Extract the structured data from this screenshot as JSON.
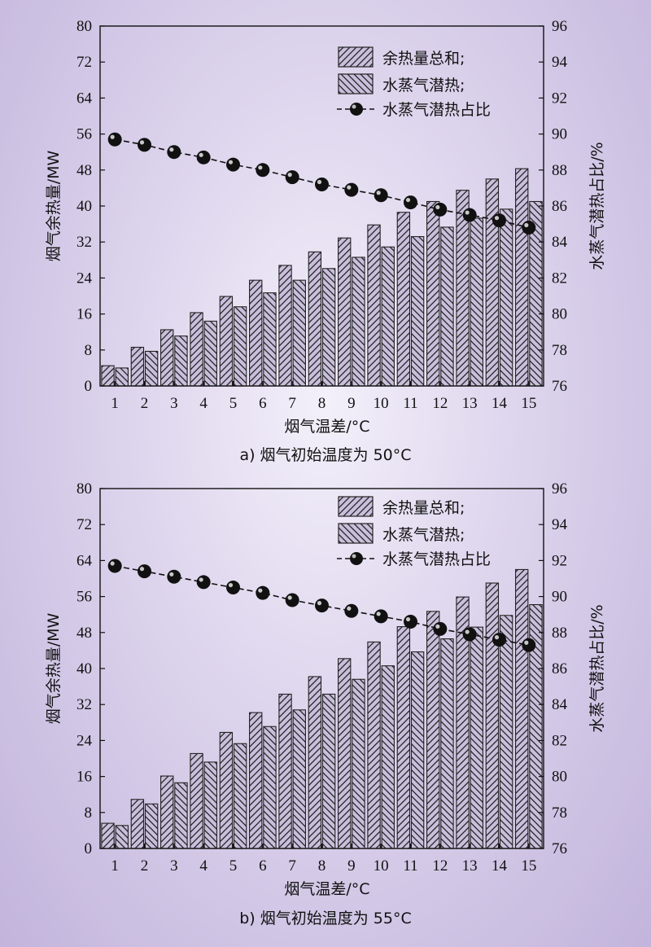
{
  "colors": {
    "bar_fill": "#c9bfdc",
    "bar_stroke": "#222222",
    "line": "#111111"
  },
  "chart_data": [
    {
      "type": "bar",
      "caption": "a) 烟气初始温度为 50°C",
      "xlabel": "烟气温差/°C",
      "ylabel": "烟气余热量/MW",
      "y2label": "水蒸气潜热占比/%",
      "categories": [
        "1",
        "2",
        "3",
        "4",
        "5",
        "6",
        "7",
        "8",
        "9",
        "10",
        "11",
        "12",
        "13",
        "14",
        "15"
      ],
      "ylim": [
        0,
        80
      ],
      "yticks": [
        0,
        8,
        16,
        24,
        32,
        40,
        48,
        56,
        64,
        72,
        80
      ],
      "y2lim": [
        76,
        96
      ],
      "y2ticks": [
        76,
        78,
        80,
        82,
        84,
        86,
        88,
        90,
        92,
        94,
        96
      ],
      "legend_position": "top-right",
      "series": [
        {
          "name": "余热量总和;",
          "kind": "bar",
          "axis": "left",
          "values": [
            4.5,
            8.6,
            12.5,
            16.3,
            19.9,
            23.5,
            26.8,
            29.8,
            32.9,
            35.8,
            38.6,
            41.0,
            43.5,
            46.0,
            48.3
          ]
        },
        {
          "name": "水蒸气潜热;",
          "kind": "bar",
          "axis": "left",
          "values": [
            4.0,
            7.7,
            11.1,
            14.4,
            17.6,
            20.7,
            23.5,
            26.1,
            28.6,
            30.9,
            33.2,
            35.3,
            37.3,
            39.3,
            41.0
          ]
        },
        {
          "name": "水蒸气潜热占比",
          "kind": "line",
          "axis": "right",
          "values": [
            89.7,
            89.4,
            89.0,
            88.7,
            88.3,
            88.0,
            87.6,
            87.2,
            86.9,
            86.6,
            86.2,
            85.8,
            85.5,
            85.2,
            84.8
          ]
        }
      ]
    },
    {
      "type": "bar",
      "caption": "b) 烟气初始温度为 55°C",
      "xlabel": "烟气温差/°C",
      "ylabel": "烟气余热量/MW",
      "y2label": "水蒸气潜热占比/%",
      "categories": [
        "1",
        "2",
        "3",
        "4",
        "5",
        "6",
        "7",
        "8",
        "9",
        "10",
        "11",
        "12",
        "13",
        "14",
        "15"
      ],
      "ylim": [
        0,
        80
      ],
      "yticks": [
        0,
        8,
        16,
        24,
        32,
        40,
        48,
        56,
        64,
        72,
        80
      ],
      "y2lim": [
        76,
        96
      ],
      "y2ticks": [
        76,
        78,
        80,
        82,
        84,
        86,
        88,
        90,
        92,
        94,
        96
      ],
      "legend_position": "top-right",
      "series": [
        {
          "name": "余热量总和;",
          "kind": "bar",
          "axis": "left",
          "values": [
            5.6,
            10.9,
            16.1,
            21.1,
            25.8,
            30.2,
            34.3,
            38.2,
            42.2,
            45.9,
            49.3,
            52.7,
            55.9,
            59.0,
            62.0
          ]
        },
        {
          "name": "水蒸气潜热;",
          "kind": "bar",
          "axis": "left",
          "values": [
            5.1,
            9.9,
            14.6,
            19.2,
            23.3,
            27.1,
            30.8,
            34.3,
            37.6,
            40.6,
            43.7,
            46.6,
            49.2,
            51.8,
            54.2
          ]
        },
        {
          "name": "水蒸气潜热占比",
          "kind": "line",
          "axis": "right",
          "values": [
            91.7,
            91.4,
            91.1,
            90.8,
            90.5,
            90.2,
            89.8,
            89.5,
            89.2,
            88.9,
            88.6,
            88.2,
            87.9,
            87.6,
            87.3
          ]
        }
      ]
    }
  ]
}
